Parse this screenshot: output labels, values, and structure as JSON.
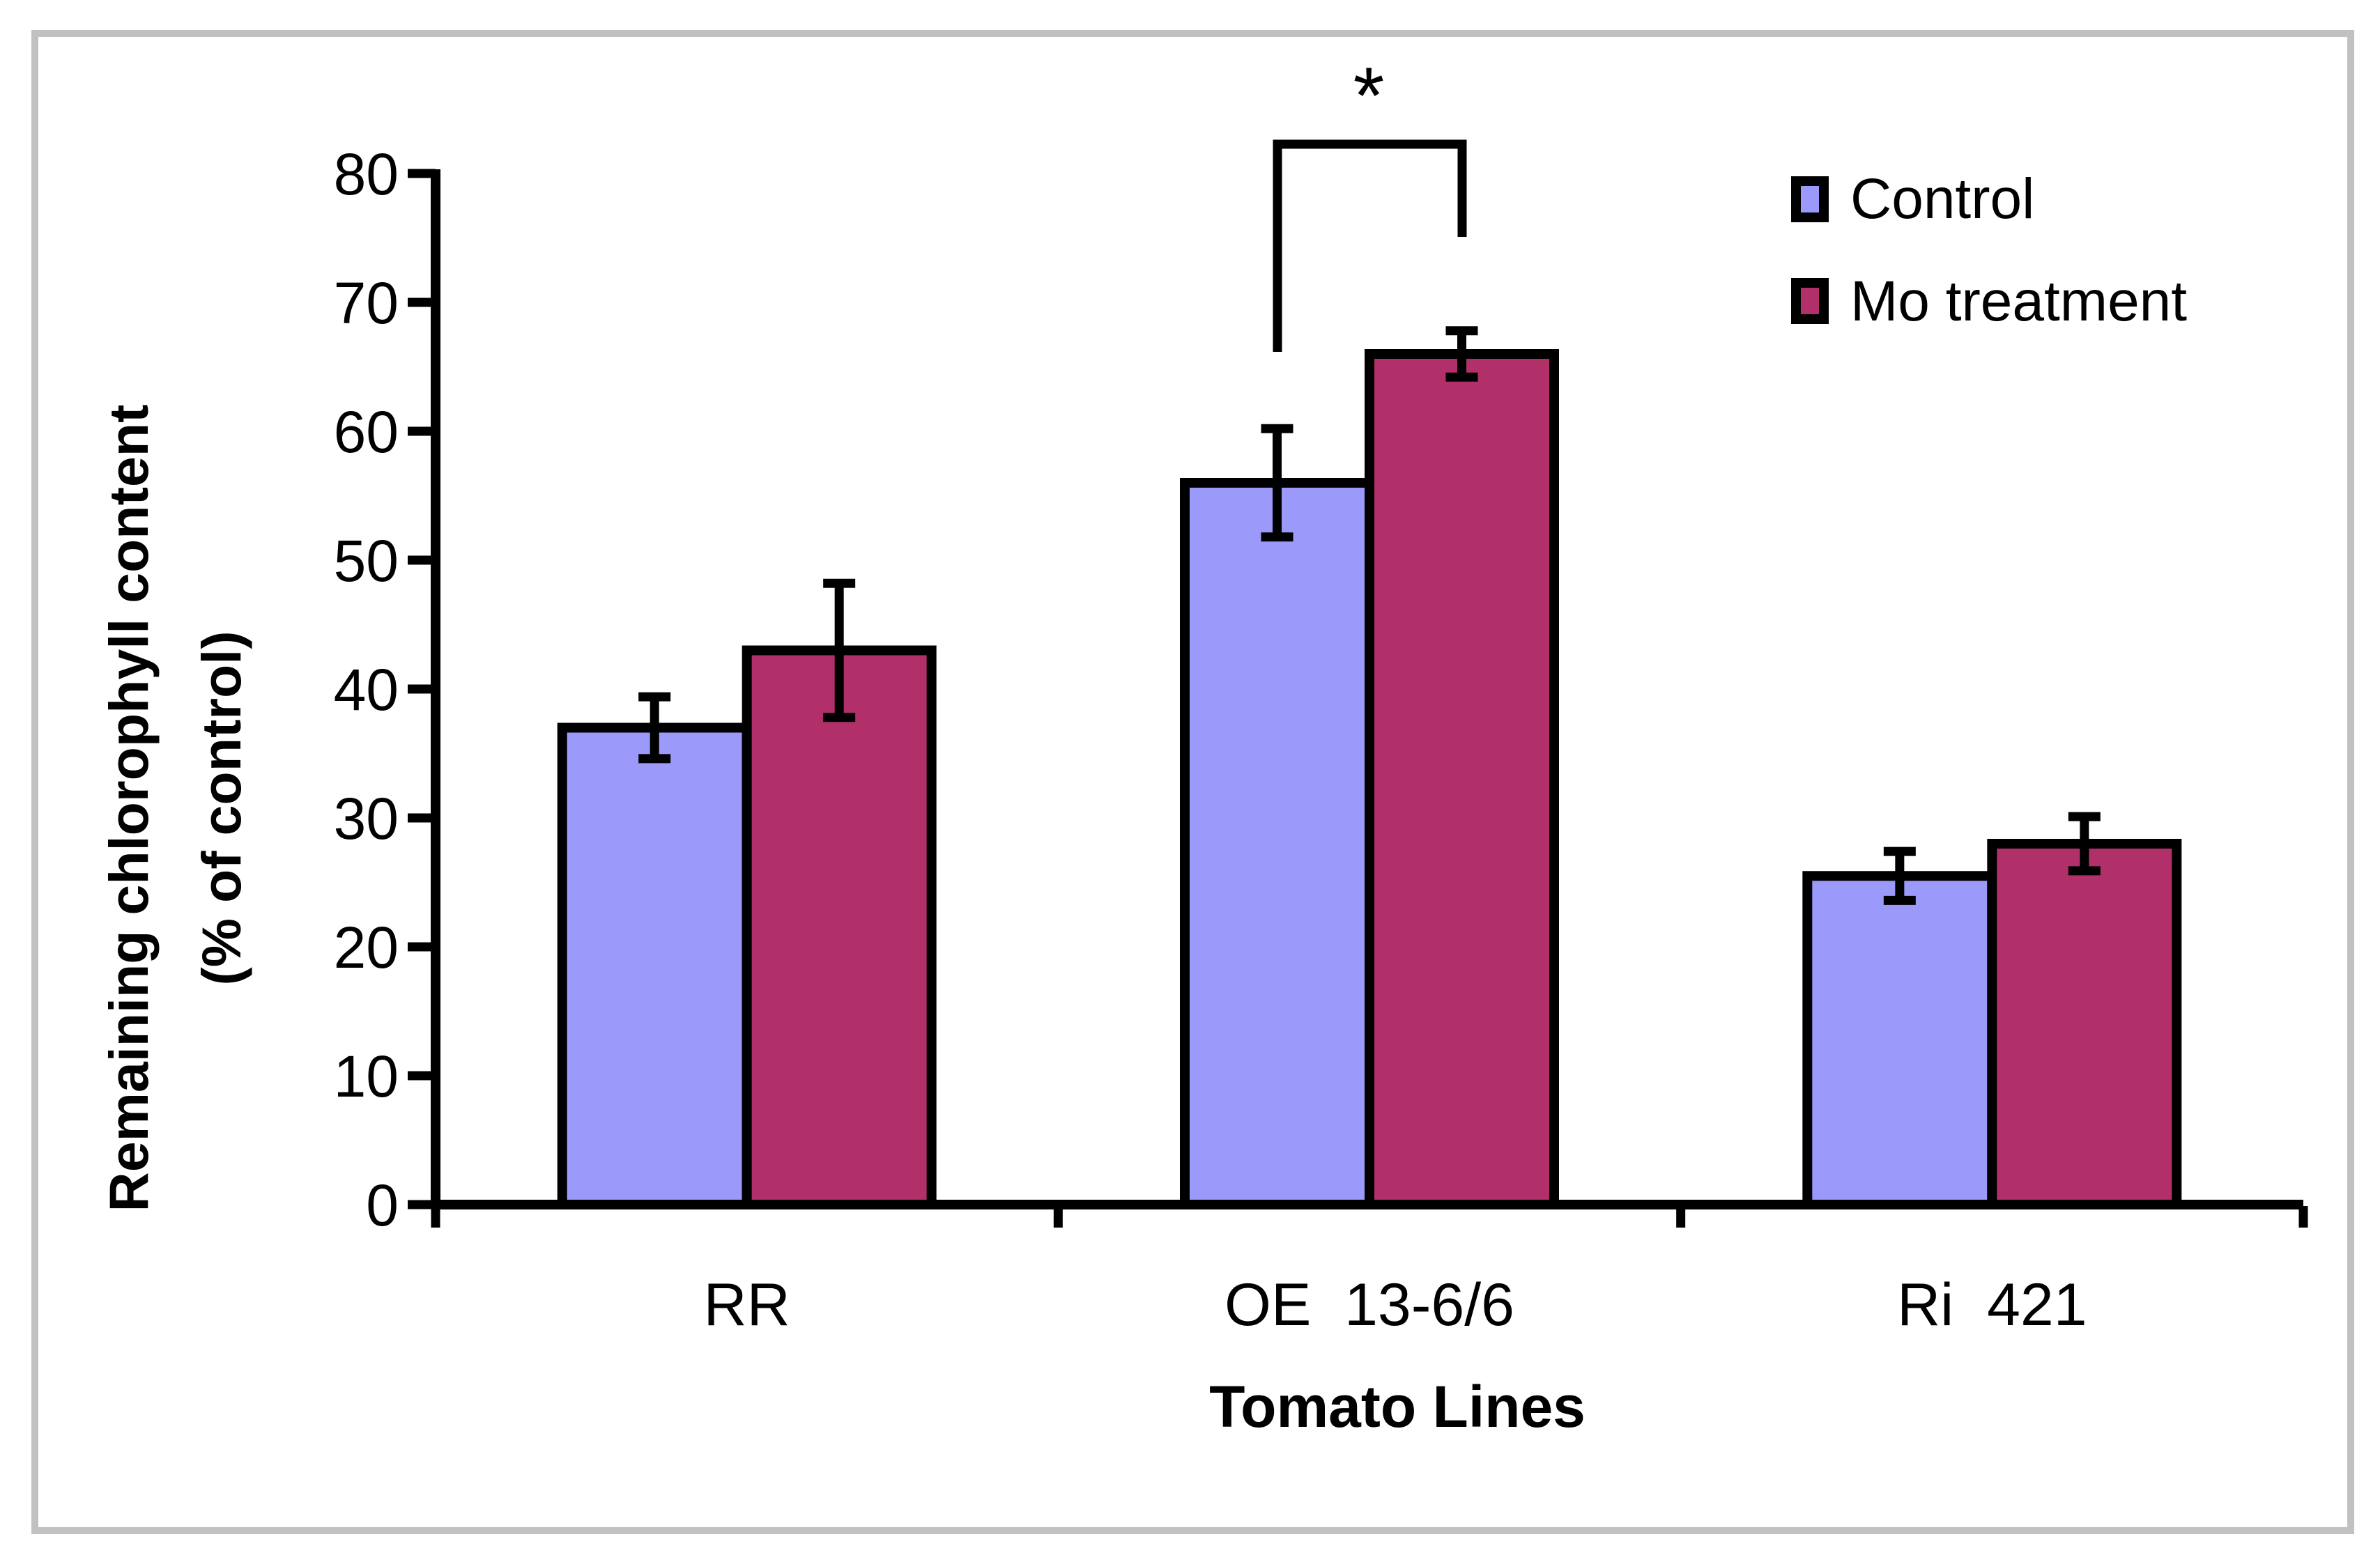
{
  "figure": {
    "background_color": "#FFFFFF",
    "frame_color": "#C1C1C1"
  },
  "chart_data": {
    "type": "bar",
    "title": "",
    "categories": [
      "RR",
      "OE  13-6/6",
      "Ri  421"
    ],
    "series": [
      {
        "name": "Control",
        "color": "#9B99FA",
        "values": [
          37,
          56,
          25.5
        ],
        "errors": [
          2.4,
          4.2,
          1.9
        ]
      },
      {
        "name": "Mo treatment",
        "color": "#B23069",
        "values": [
          43,
          66,
          28
        ],
        "errors": [
          5.2,
          1.8,
          2.1
        ]
      }
    ],
    "xlabel": "Tomato Lines",
    "ylabel": "Remaining chlorophyll content (% of control)",
    "ylabel_lines": [
      "Remaining chlorophyll content",
      "(% of control)"
    ],
    "ylim": [
      0,
      80
    ],
    "yticks": [
      0,
      10,
      20,
      30,
      40,
      50,
      60,
      70,
      80
    ],
    "bar_edge_color": "#000000",
    "error_bar_color": "#000000",
    "grid": false,
    "legend_position": "upper right",
    "legend": [
      "Control",
      "Mo treatment"
    ],
    "annotations": [
      {
        "type": "significance-bracket",
        "label": "*",
        "category": "OE  13-6/6",
        "between": [
          "Control",
          "Mo treatment"
        ]
      }
    ]
  }
}
